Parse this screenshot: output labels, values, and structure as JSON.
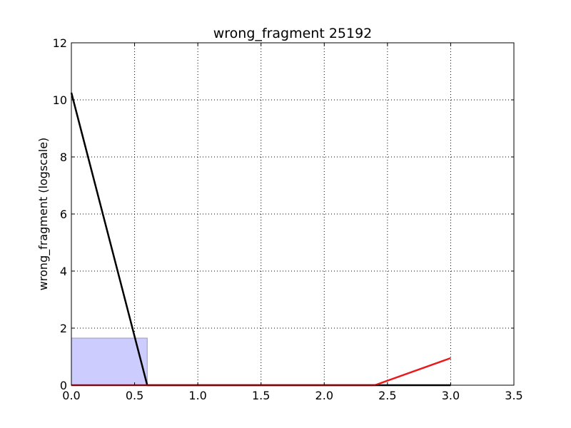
{
  "chart_data": {
    "type": "line",
    "title": "wrong_fragment 25192",
    "xlabel": "",
    "ylabel": "wrong_fragment (logscale)",
    "xlim": [
      0,
      3.5
    ],
    "ylim": [
      0,
      12
    ],
    "xticks": [
      "0.0",
      "0.5",
      "1.0",
      "1.5",
      "2.0",
      "2.5",
      "3.0",
      "3.5"
    ],
    "yticks": [
      "0",
      "2",
      "4",
      "6",
      "8",
      "10",
      "12"
    ],
    "grid": true,
    "bars": [
      {
        "x0": 0,
        "x1": 0.6,
        "value": 1.65,
        "color": "#ccccff",
        "edge": "#9999bb"
      }
    ],
    "series": [
      {
        "color": "#000000",
        "x": [
          0,
          0.6,
          3.0
        ],
        "y": [
          10.25,
          0,
          0
        ]
      },
      {
        "color": "#e8191b",
        "x": [
          0,
          2.4,
          3.0
        ],
        "y": [
          0,
          0,
          0.95
        ]
      }
    ]
  }
}
